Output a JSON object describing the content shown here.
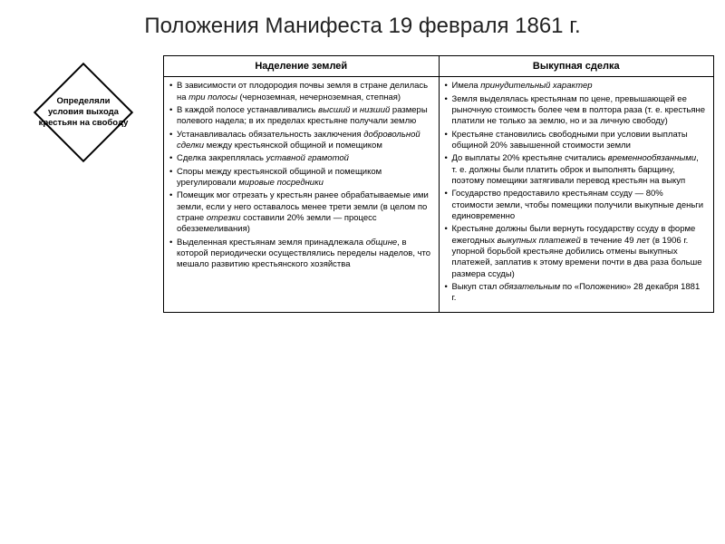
{
  "title": "Положения Манифеста 19 февраля 1861 г.",
  "diamond": {
    "label": "Определяли условия выхода крестьян на свободу"
  },
  "table": {
    "columns": [
      "Наделение землей",
      "Выкупная сделка"
    ],
    "col1": [
      "В зависимости от плодородия почвы земля в стране делилась на <em>три полосы</em> (черноземная, нечерноземная, степная)",
      "В каждой полосе устанавливались <em>высший</em> и <em>низший</em> размеры полевого надела; в их пределах крестьяне получали землю",
      "Устанавливалась обязательность заключения <em>добровольной сделки</em> между крестьянской общиной и помещиком",
      "Сделка закреплялась <em>уставной грамотой</em>",
      "Споры между крестьянской общиной и помещиком урегулировали <em>мировые посредники</em>",
      "Помещик мог отрезать у крестьян ранее обрабатываемые ими земли, если у него оставалось менее трети земли (в целом по стране <em>отрезки</em> составили 20% земли — процесс обезземеливания)",
      "Выделенная крестьянам земля принадлежала <em>общине</em>, в которой периодически осуществлялись переделы наделов, что мешало развитию крестьянского хозяйства"
    ],
    "col2": [
      "Имела <em>принудительный характер</em>",
      "Земля выделялась крестьянам по цене, превышающей ее рыночную стоимость более чем в полтора раза (т. е. крестьяне платили не только за землю, но и за личную свободу)",
      "Крестьяне становились свободными при условии выплаты общиной 20% завышенной стоимости земли",
      "До выплаты 20% крестьяне считались <em>временнообязанными</em>, т. е. должны были платить оброк и выполнять барщину, поэтому помещики затягивали перевод крестьян на выкуп",
      "Государство предоставило крестьянам ссуду — 80% стоимости земли, чтобы помещики получили выкупные деньги единовременно",
      "Крестьяне должны были вернуть государству ссуду в форме ежегодных <em>выкупных платежей</em> в течение 49 лет (в 1906 г. упорной борьбой крестьяне добились отмены выкупных платежей, заплатив к этому времени почти в два раза больше размера ссуды)",
      "Выкуп стал <em>обязательным</em> по «Положению» 28 декабря 1881 г."
    ]
  },
  "styling": {
    "background": "#ffffff",
    "border_color": "#000000",
    "title_fontsize": 24,
    "th_fontsize": 11,
    "td_fontsize": 9.5,
    "diamond_fontsize": 9.5
  }
}
